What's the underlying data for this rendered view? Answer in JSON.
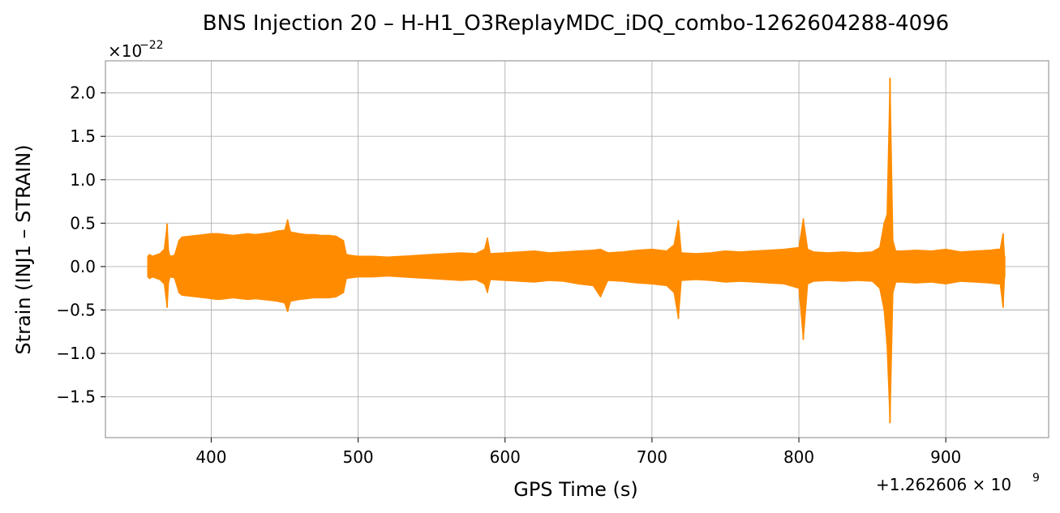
{
  "chart_data": {
    "type": "line",
    "title": "BNS Injection 20 – H-H1_O3ReplayMDC_iDQ_combo-1262604288-4096",
    "xlabel": "GPS Time (s)",
    "ylabel": "Strain (INJ1 – STRAIN)",
    "x_offset_label": "+1.262606 × 10",
    "x_offset_exponent": "9",
    "y_multiplier_label": "×10",
    "y_multiplier_exponent": "−22",
    "xlim": [
      1262606328,
      1262606970
    ],
    "ylim": [
      -1.97,
      2.37
    ],
    "x_ticks": [
      1262606400,
      1262606500,
      1262606600,
      1262606700,
      1262606800,
      1262606900
    ],
    "x_tick_labels": [
      "400",
      "500",
      "600",
      "700",
      "800",
      "900"
    ],
    "y_ticks": [
      2.0,
      1.5,
      1.0,
      0.5,
      0.0,
      -0.5,
      -1.0,
      -1.5
    ],
    "y_tick_labels": [
      "2.0",
      "1.5",
      "1.0",
      "0.5",
      "0.0",
      "−0.5",
      "−1.0",
      "−1.5"
    ],
    "grid": true,
    "line_color": "#ff8c00",
    "series": [
      {
        "x": [
          1262606357,
          1262606358,
          1262606360,
          1262606365,
          1262606368,
          1262606370,
          1262606371,
          1262606372,
          1262606375,
          1262606378,
          1262606380,
          1262606385,
          1262606390,
          1262606395,
          1262606400,
          1262606405,
          1262606410,
          1262606415,
          1262606420,
          1262606425,
          1262606430,
          1262606435,
          1262606440,
          1262606445,
          1262606450,
          1262606452,
          1262606454,
          1262606460,
          1262606465,
          1262606470,
          1262606475,
          1262606480,
          1262606485,
          1262606490,
          1262606492,
          1262606495,
          1262606500,
          1262606510,
          1262606520,
          1262606530,
          1262606540,
          1262606550,
          1262606560,
          1262606570,
          1262606580,
          1262606586,
          1262606588,
          1262606590,
          1262606600,
          1262606610,
          1262606620,
          1262606630,
          1262606640,
          1262606650,
          1262606660,
          1262606665,
          1262606670,
          1262606680,
          1262606690,
          1262606700,
          1262606710,
          1262606715,
          1262606718,
          1262606720,
          1262606730,
          1262606740,
          1262606750,
          1262606760,
          1262606770,
          1262606780,
          1262606790,
          1262606800,
          1262606803,
          1262606806,
          1262606810,
          1262606820,
          1262606830,
          1262606840,
          1262606850,
          1262606855,
          1262606858,
          1262606860,
          1262606862,
          1262606864,
          1262606866,
          1262606870,
          1262606880,
          1262606890,
          1262606900,
          1262606910,
          1262606920,
          1262606930,
          1262606935,
          1262606937,
          1262606939,
          1262606940
        ],
        "y_upper": [
          0.12,
          0.14,
          0.12,
          0.15,
          0.2,
          0.49,
          0.18,
          0.12,
          0.13,
          0.3,
          0.34,
          0.35,
          0.36,
          0.37,
          0.38,
          0.38,
          0.37,
          0.36,
          0.37,
          0.38,
          0.37,
          0.38,
          0.39,
          0.41,
          0.42,
          0.54,
          0.4,
          0.38,
          0.37,
          0.37,
          0.36,
          0.36,
          0.35,
          0.3,
          0.14,
          0.13,
          0.12,
          0.12,
          0.11,
          0.12,
          0.13,
          0.14,
          0.15,
          0.16,
          0.15,
          0.2,
          0.33,
          0.15,
          0.16,
          0.17,
          0.18,
          0.16,
          0.17,
          0.18,
          0.19,
          0.2,
          0.16,
          0.17,
          0.19,
          0.2,
          0.18,
          0.25,
          0.53,
          0.16,
          0.15,
          0.16,
          0.18,
          0.17,
          0.18,
          0.19,
          0.2,
          0.22,
          0.55,
          0.2,
          0.17,
          0.16,
          0.17,
          0.16,
          0.17,
          0.22,
          0.5,
          0.6,
          2.17,
          0.3,
          0.18,
          0.18,
          0.19,
          0.18,
          0.2,
          0.17,
          0.18,
          0.19,
          0.2,
          0.2,
          0.38,
          0.12
        ],
        "y_lower": [
          -0.12,
          -0.14,
          -0.12,
          -0.15,
          -0.2,
          -0.47,
          -0.18,
          -0.12,
          -0.13,
          -0.3,
          -0.33,
          -0.34,
          -0.35,
          -0.36,
          -0.37,
          -0.38,
          -0.37,
          -0.36,
          -0.37,
          -0.38,
          -0.37,
          -0.38,
          -0.39,
          -0.4,
          -0.42,
          -0.52,
          -0.4,
          -0.38,
          -0.37,
          -0.36,
          -0.36,
          -0.36,
          -0.35,
          -0.3,
          -0.14,
          -0.13,
          -0.12,
          -0.12,
          -0.11,
          -0.12,
          -0.13,
          -0.14,
          -0.15,
          -0.16,
          -0.15,
          -0.2,
          -0.3,
          -0.15,
          -0.16,
          -0.17,
          -0.18,
          -0.16,
          -0.17,
          -0.2,
          -0.22,
          -0.35,
          -0.16,
          -0.17,
          -0.19,
          -0.2,
          -0.22,
          -0.3,
          -0.6,
          -0.16,
          -0.15,
          -0.16,
          -0.18,
          -0.17,
          -0.18,
          -0.19,
          -0.2,
          -0.25,
          -0.84,
          -0.2,
          -0.17,
          -0.16,
          -0.17,
          -0.16,
          -0.17,
          -0.25,
          -0.5,
          -0.9,
          -1.8,
          -0.3,
          -0.18,
          -0.18,
          -0.19,
          -0.18,
          -0.2,
          -0.17,
          -0.18,
          -0.19,
          -0.2,
          -0.2,
          -0.47,
          -0.12
        ]
      }
    ]
  }
}
